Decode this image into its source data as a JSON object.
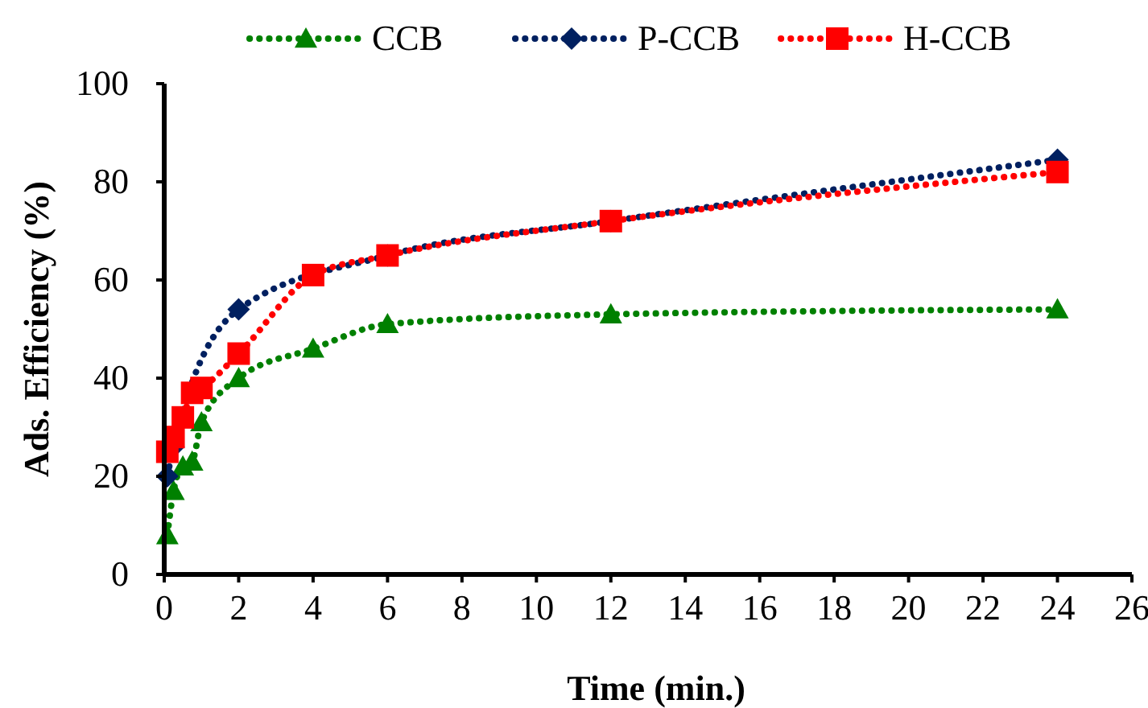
{
  "chart_data": {
    "type": "line",
    "xlabel": "Time (min.)",
    "ylabel": "Ads. Efficiency (%)",
    "x": [
      0.083,
      0.25,
      0.5,
      0.75,
      1,
      2,
      4,
      6,
      12,
      24
    ],
    "series": [
      {
        "name": "CCB",
        "color": "#008000",
        "marker": "triangle",
        "values": [
          8,
          17,
          22,
          23,
          31,
          40,
          46,
          51,
          53,
          54
        ]
      },
      {
        "name": "P-CCB",
        "color": "#002060",
        "marker": "diamond",
        "values": [
          20,
          26,
          null,
          null,
          null,
          54,
          null,
          65,
          72,
          84.5
        ]
      },
      {
        "name": "H-CCB",
        "color": "#ff0000",
        "marker": "square",
        "values": [
          25,
          28,
          32,
          37,
          38,
          45,
          61,
          65,
          72,
          82
        ]
      }
    ],
    "xlim": [
      0,
      26
    ],
    "xticks": [
      0,
      2,
      4,
      6,
      8,
      10,
      12,
      14,
      16,
      18,
      20,
      22,
      24,
      26
    ],
    "ylim": [
      0,
      100
    ],
    "yticks": [
      0,
      20,
      40,
      60,
      80,
      100
    ],
    "grid": false,
    "legend": "top",
    "line_style": "dotted"
  }
}
